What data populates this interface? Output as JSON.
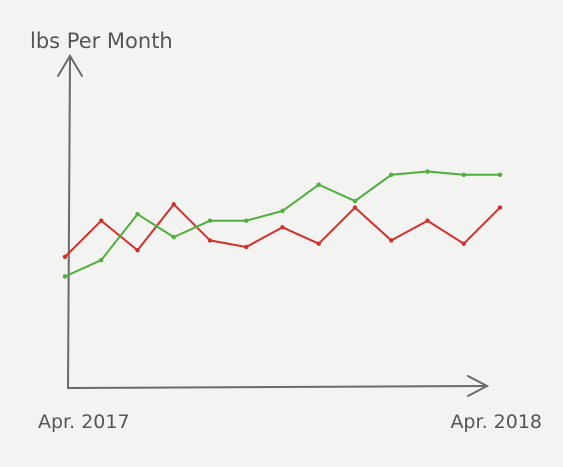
{
  "chart_data": {
    "type": "line",
    "title": "lbs Per Month",
    "categories": [
      "Apr. 2017",
      null,
      null,
      null,
      null,
      null,
      null,
      null,
      null,
      null,
      null,
      null,
      "Apr. 2018"
    ],
    "ylim": [
      0,
      100
    ],
    "series": [
      {
        "color": "#d2302c",
        "values": [
          40,
          51,
          42,
          56,
          45,
          43,
          49,
          44,
          55,
          45,
          51,
          44,
          55
        ]
      },
      {
        "color": "#4fae3c",
        "values": [
          34,
          39,
          53,
          46,
          51,
          51,
          54,
          62,
          57,
          65,
          66,
          65,
          65
        ]
      }
    ]
  }
}
